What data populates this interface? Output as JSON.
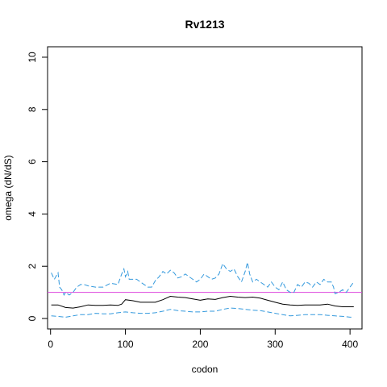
{
  "chart_data": {
    "type": "line",
    "title": "Rv1213",
    "xlabel": "codon",
    "ylabel": "omega (dN/dS)",
    "xlim": [
      -4,
      416
    ],
    "ylim": [
      -0.4,
      10.4
    ],
    "x_ticks": [
      0,
      100,
      200,
      300,
      400
    ],
    "y_ticks": [
      0,
      2,
      4,
      6,
      8,
      10
    ],
    "grid": false,
    "reference_line": {
      "y": 1,
      "color": "#dd44dd"
    },
    "series": [
      {
        "role": "estimate",
        "color": "#000000",
        "dash": "solid",
        "x": [
          1,
          10,
          20,
          30,
          40,
          50,
          60,
          70,
          80,
          90,
          95,
          100,
          110,
          120,
          130,
          140,
          150,
          160,
          170,
          180,
          190,
          200,
          210,
          220,
          230,
          240,
          250,
          260,
          270,
          280,
          290,
          300,
          310,
          320,
          330,
          340,
          350,
          360,
          370,
          380,
          390,
          400,
          405
        ],
        "y": [
          0.52,
          0.52,
          0.42,
          0.4,
          0.45,
          0.52,
          0.5,
          0.5,
          0.52,
          0.5,
          0.55,
          0.72,
          0.68,
          0.62,
          0.62,
          0.62,
          0.72,
          0.85,
          0.82,
          0.8,
          0.75,
          0.7,
          0.75,
          0.73,
          0.8,
          0.85,
          0.82,
          0.8,
          0.82,
          0.78,
          0.7,
          0.62,
          0.55,
          0.52,
          0.5,
          0.52,
          0.52,
          0.52,
          0.55,
          0.48,
          0.45,
          0.45,
          0.45
        ]
      },
      {
        "role": "upper-bound",
        "color": "#3399dd",
        "dash": "dashed",
        "x": [
          1,
          5,
          10,
          12,
          15,
          18,
          20,
          25,
          30,
          35,
          40,
          45,
          50,
          60,
          70,
          80,
          90,
          95,
          98,
          100,
          103,
          105,
          110,
          115,
          120,
          125,
          130,
          135,
          140,
          145,
          150,
          155,
          160,
          165,
          170,
          175,
          180,
          185,
          190,
          195,
          200,
          205,
          210,
          215,
          220,
          225,
          230,
          235,
          240,
          245,
          250,
          255,
          260,
          263,
          266,
          270,
          275,
          280,
          285,
          290,
          295,
          300,
          305,
          310,
          315,
          320,
          325,
          330,
          335,
          340,
          345,
          350,
          355,
          360,
          365,
          370,
          375,
          378,
          380,
          385,
          390,
          395,
          400,
          405
        ],
        "y": [
          1.75,
          1.5,
          1.75,
          1.2,
          1.1,
          0.9,
          1.0,
          0.9,
          1.0,
          1.2,
          1.3,
          1.3,
          1.25,
          1.2,
          1.2,
          1.35,
          1.3,
          1.7,
          1.9,
          1.6,
          1.8,
          1.5,
          1.5,
          1.5,
          1.4,
          1.3,
          1.2,
          1.2,
          1.45,
          1.6,
          1.8,
          1.7,
          1.85,
          1.75,
          1.55,
          1.6,
          1.7,
          1.6,
          1.5,
          1.4,
          1.5,
          1.7,
          1.6,
          1.5,
          1.55,
          1.7,
          2.1,
          1.9,
          1.8,
          1.9,
          1.6,
          1.4,
          1.8,
          2.15,
          1.7,
          1.4,
          1.5,
          1.4,
          1.3,
          1.2,
          1.4,
          1.2,
          1.1,
          1.4,
          1.1,
          1.0,
          1.0,
          1.3,
          1.2,
          1.4,
          1.35,
          1.2,
          1.4,
          1.3,
          1.5,
          1.4,
          1.4,
          1.2,
          0.95,
          1.0,
          1.1,
          1.0,
          1.2,
          1.4
        ]
      },
      {
        "role": "lower-bound",
        "color": "#3399dd",
        "dash": "dashed",
        "x": [
          1,
          10,
          20,
          30,
          40,
          50,
          60,
          70,
          80,
          90,
          100,
          110,
          120,
          130,
          140,
          150,
          160,
          170,
          180,
          190,
          200,
          210,
          220,
          230,
          240,
          250,
          260,
          270,
          280,
          290,
          300,
          310,
          320,
          330,
          340,
          350,
          360,
          370,
          380,
          390,
          400,
          405
        ],
        "y": [
          0.1,
          0.08,
          0.05,
          0.1,
          0.15,
          0.15,
          0.2,
          0.18,
          0.18,
          0.22,
          0.25,
          0.22,
          0.2,
          0.2,
          0.22,
          0.28,
          0.35,
          0.3,
          0.28,
          0.25,
          0.25,
          0.28,
          0.28,
          0.35,
          0.4,
          0.38,
          0.35,
          0.32,
          0.3,
          0.25,
          0.2,
          0.15,
          0.1,
          0.12,
          0.15,
          0.15,
          0.15,
          0.12,
          0.1,
          0.08,
          0.05,
          0.05
        ]
      }
    ]
  }
}
